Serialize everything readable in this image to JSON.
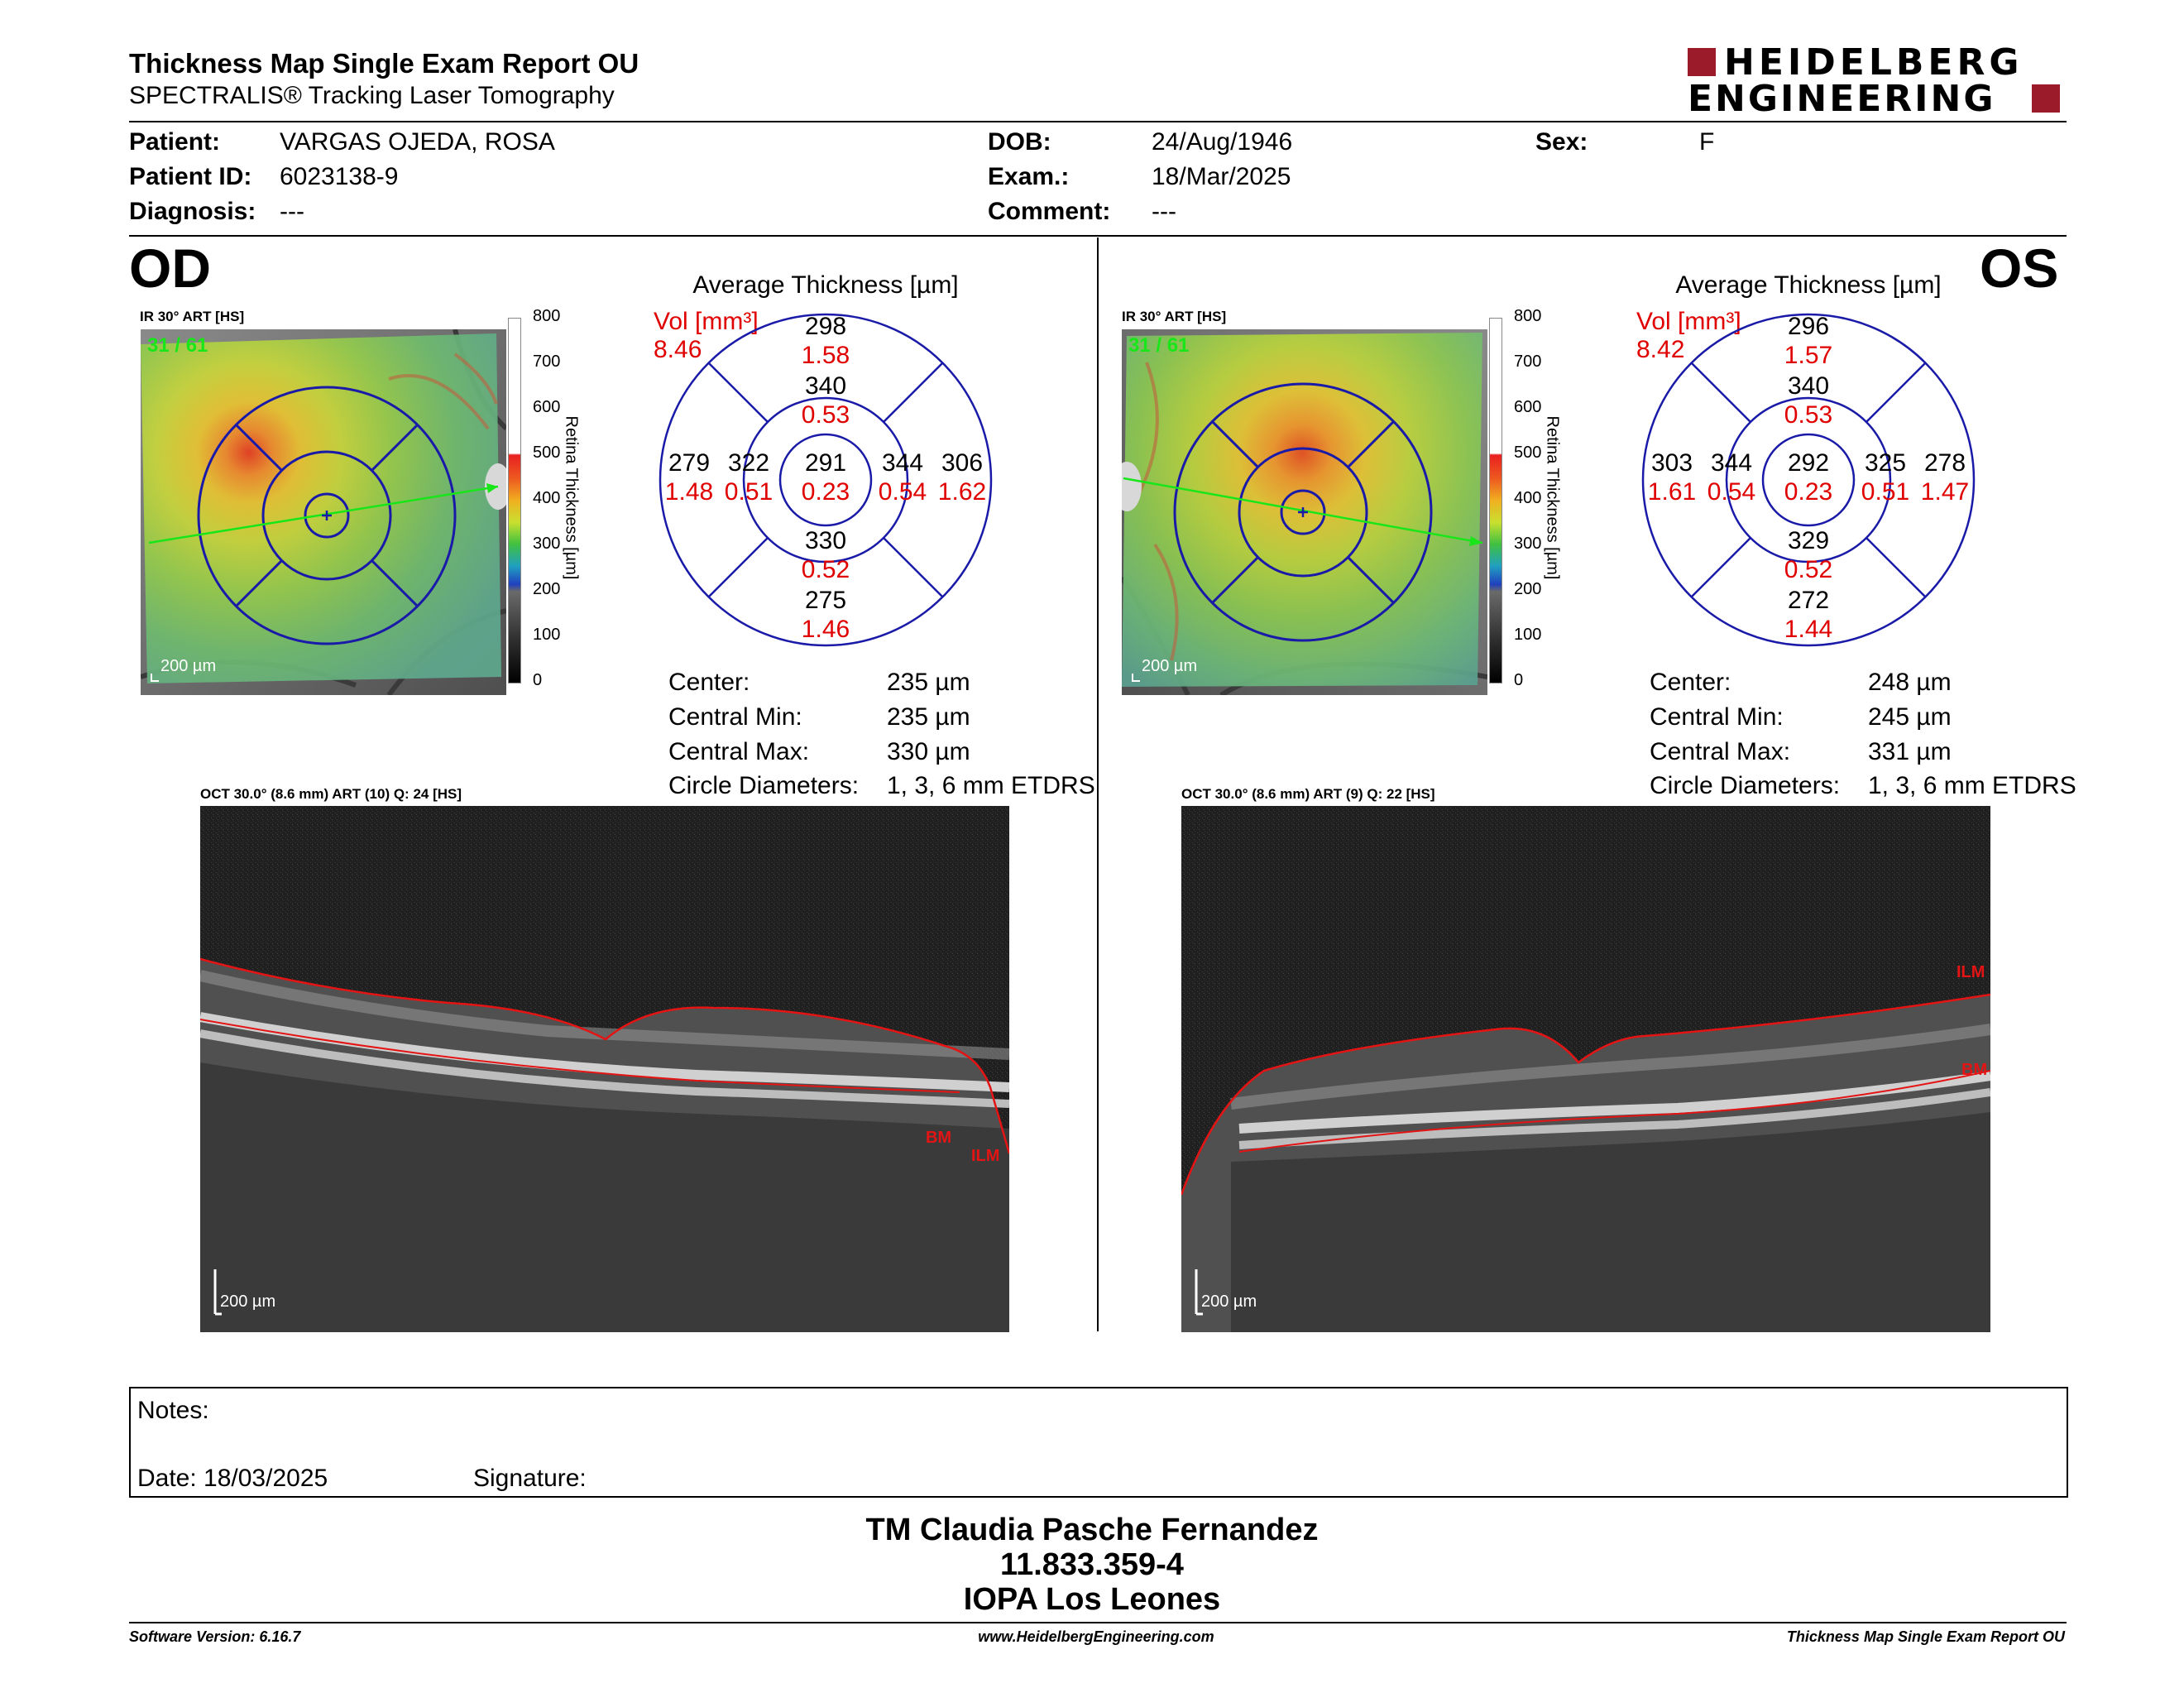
{
  "header": {
    "title": "Thickness Map Single Exam Report OU",
    "subtitle": "SPECTRALIS® Tracking Laser Tomography",
    "logo_line1": "HEIDELBERG",
    "logo_line2": "ENGINEERING"
  },
  "patient": {
    "patient_label": "Patient:",
    "patient_value": "VARGAS OJEDA, ROSA",
    "id_label": "Patient ID:",
    "id_value": "6023138-9",
    "diag_label": "Diagnosis:",
    "diag_value": "---",
    "dob_label": "DOB:",
    "dob_value": "24/Aug/1946",
    "exam_label": "Exam.:",
    "exam_value": "18/Mar/2025",
    "comment_label": "Comment:",
    "comment_value": "---",
    "sex_label": "Sex:",
    "sex_value": "F"
  },
  "colorbar": {
    "ticks": [
      "800",
      "700",
      "600",
      "500",
      "400",
      "300",
      "200",
      "100",
      "0"
    ],
    "label": "Retina Thickness [µm]"
  },
  "od": {
    "eye": "OD",
    "ir_caption": "IR 30° ART [HS]",
    "frame": "31 / 61",
    "scale": "200 µm",
    "avg_title": "Average Thickness [µm]",
    "vol_label": "Vol [mm³]",
    "vol_value": "8.46",
    "sectors": {
      "outer_sup": [
        "298",
        "1.58"
      ],
      "inner_sup": [
        "340",
        "0.53"
      ],
      "outer_left": [
        "279",
        "1.48"
      ],
      "inner_left": [
        "322",
        "0.51"
      ],
      "center": [
        "291",
        "0.23"
      ],
      "inner_right": [
        "344",
        "0.54"
      ],
      "outer_right": [
        "306",
        "1.62"
      ],
      "inner_inf": [
        "330",
        "0.52"
      ],
      "outer_inf": [
        "275",
        "1.46"
      ]
    },
    "stats": [
      {
        "label": "Center:",
        "value": "235 µm"
      },
      {
        "label": "Central Min:",
        "value": "235 µm"
      },
      {
        "label": "Central Max:",
        "value": "330 µm"
      },
      {
        "label": "Circle Diameters:",
        "value": "1, 3, 6 mm ETDRS"
      }
    ],
    "oct_caption": "OCT 30.0° (8.6 mm) ART (10) Q: 24 [HS]",
    "oct_scale": "200 µm",
    "oct_labels": {
      "bm": "BM",
      "ilm": "ILM"
    }
  },
  "os": {
    "eye": "OS",
    "ir_caption": "IR 30° ART [HS]",
    "frame": "31 / 61",
    "scale": "200 µm",
    "avg_title": "Average Thickness [µm]",
    "vol_label": "Vol [mm³]",
    "vol_value": "8.42",
    "sectors": {
      "outer_sup": [
        "296",
        "1.57"
      ],
      "inner_sup": [
        "340",
        "0.53"
      ],
      "outer_left": [
        "303",
        "1.61"
      ],
      "inner_left": [
        "344",
        "0.54"
      ],
      "center": [
        "292",
        "0.23"
      ],
      "inner_right": [
        "325",
        "0.51"
      ],
      "outer_right": [
        "278",
        "1.47"
      ],
      "inner_inf": [
        "329",
        "0.52"
      ],
      "outer_inf": [
        "272",
        "1.44"
      ]
    },
    "stats": [
      {
        "label": "Center:",
        "value": "248 µm"
      },
      {
        "label": "Central Min:",
        "value": "245 µm"
      },
      {
        "label": "Central Max:",
        "value": "331 µm"
      },
      {
        "label": "Circle Diameters:",
        "value": "1, 3, 6 mm ETDRS"
      }
    ],
    "oct_caption": "OCT 30.0° (8.6 mm) ART (9) Q: 22 [HS]",
    "oct_scale": "200 µm",
    "oct_labels": {
      "bm": "BM",
      "ilm": "ILM"
    }
  },
  "notes": {
    "notes_label": "Notes:",
    "date_label": "Date: 18/03/2025",
    "signature_label": "Signature:"
  },
  "signatory": {
    "name": "TM Claudia Pasche Fernandez",
    "rut": "11.833.359-4",
    "institution": "IOPA Los Leones"
  },
  "footer": {
    "software": "Software Version: 6.16.7",
    "website": "www.HeidelbergEngineering.com",
    "report": "Thickness Map Single Exam Report OU"
  },
  "colors": {
    "accent_red": "#e00000",
    "circle_blue": "#1a1aa8",
    "logo_red": "#9b1b2a"
  }
}
